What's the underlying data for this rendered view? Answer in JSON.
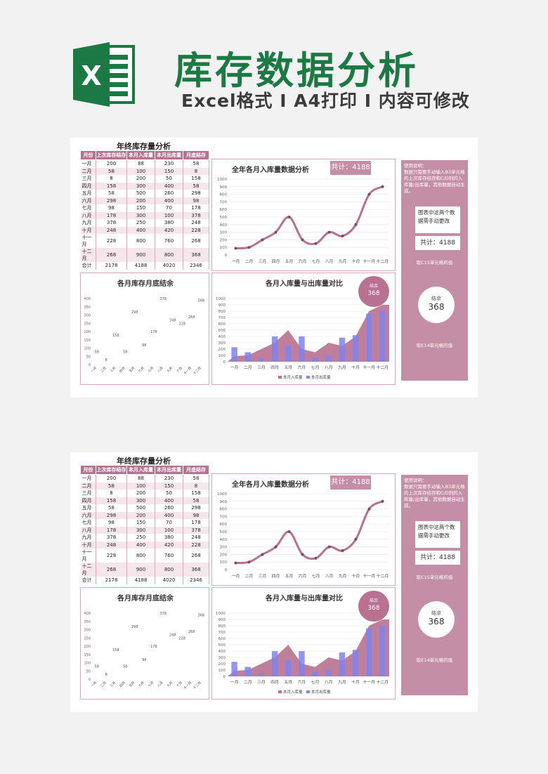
{
  "header": {
    "title": "库存数据分析",
    "subtitle": "Excel格式 I A4打印 I 内容可修改",
    "logo_letter": "X"
  },
  "colors": {
    "green": "#1b7a43",
    "mauve": "#b8718f",
    "pink_light": "#f5e6ec",
    "blue": "#7e84f0"
  },
  "table": {
    "title": "年终库存量分析",
    "headers": [
      "月份",
      "上次库存结存",
      "本月入库量",
      "本月出库量",
      "月底结存"
    ],
    "rows": [
      [
        "一月",
        "200",
        "88",
        "230",
        "58"
      ],
      [
        "二月",
        "58",
        "100",
        "150",
        "8"
      ],
      [
        "三月",
        "8",
        "200",
        "50",
        "158"
      ],
      [
        "四月",
        "158",
        "300",
        "400",
        "58"
      ],
      [
        "五月",
        "58",
        "500",
        "260",
        "298"
      ],
      [
        "六月",
        "298",
        "200",
        "400",
        "98"
      ],
      [
        "七月",
        "98",
        "150",
        "70",
        "178"
      ],
      [
        "八月",
        "178",
        "300",
        "100",
        "378"
      ],
      [
        "九月",
        "378",
        "250",
        "380",
        "248"
      ],
      [
        "十月",
        "248",
        "400",
        "420",
        "228"
      ],
      [
        "十一月",
        "228",
        "800",
        "760",
        "268"
      ],
      [
        "十二月",
        "268",
        "900",
        "800",
        "368"
      ],
      [
        "合计",
        "2178",
        "4188",
        "4020",
        "2346"
      ]
    ]
  },
  "sidebar": {
    "usage": "使用说明：\n数据只需要手动输入B3单元格的上次库存结存和C/D列的入库量/出库量，其他数据自动生成。",
    "note": "图表中这两个数据需手动更改",
    "sum_label": "共计：4188",
    "sum_note": "取C15单元格的值",
    "circle_label": "结余",
    "circle_value": "368",
    "circle_note": "取E14单元格的值"
  },
  "chart_data": [
    {
      "type": "line",
      "title": "全年各月入库量数据分析",
      "total_label": "共计：4188",
      "categories": [
        "一月",
        "二月",
        "三月",
        "四月",
        "五月",
        "六月",
        "七月",
        "八月",
        "九月",
        "十月",
        "十一月",
        "十二月"
      ],
      "values": [
        88,
        100,
        200,
        300,
        500,
        200,
        150,
        300,
        250,
        400,
        800,
        900
      ],
      "ylim": [
        0,
        1000
      ],
      "yticks": [
        "0",
        "100",
        "200",
        "300",
        "400",
        "500",
        "600",
        "700",
        "800",
        "900",
        "1000"
      ],
      "grid": true
    },
    {
      "type": "bar",
      "title": "各月库存月底结余",
      "categories": [
        "一月",
        "二月",
        "三月",
        "四月",
        "五月",
        "六月",
        "七月",
        "八月",
        "九月",
        "十月",
        "十一月",
        "十二月"
      ],
      "values": [
        58,
        8,
        158,
        58,
        298,
        98,
        178,
        378,
        248,
        228,
        268,
        368
      ],
      "ylim": [
        0,
        400
      ],
      "yticks": [
        "0",
        "50",
        "100",
        "150",
        "200",
        "250",
        "300",
        "350",
        "400"
      ],
      "data_labels": true
    },
    {
      "type": "area",
      "title": "各月入库量与出库量对比",
      "categories": [
        "一月",
        "二月",
        "三月",
        "四月",
        "五月",
        "六月",
        "七月",
        "八月",
        "九月",
        "十月",
        "十一月",
        "十二月"
      ],
      "series": [
        {
          "name": "本月入库量",
          "values": [
            88,
            100,
            200,
            300,
            500,
            200,
            150,
            300,
            250,
            400,
            800,
            900
          ]
        },
        {
          "name": "本月出库量",
          "values": [
            230,
            150,
            50,
            400,
            260,
            400,
            70,
            100,
            380,
            420,
            760,
            800
          ]
        }
      ],
      "ylim": [
        0,
        1000
      ],
      "yticks": [
        "0",
        "100",
        "200",
        "300",
        "400",
        "500",
        "600",
        "700",
        "800",
        "900",
        "1000"
      ],
      "bubble_label": "结余",
      "bubble_value": "368",
      "legend": "bottom"
    }
  ]
}
